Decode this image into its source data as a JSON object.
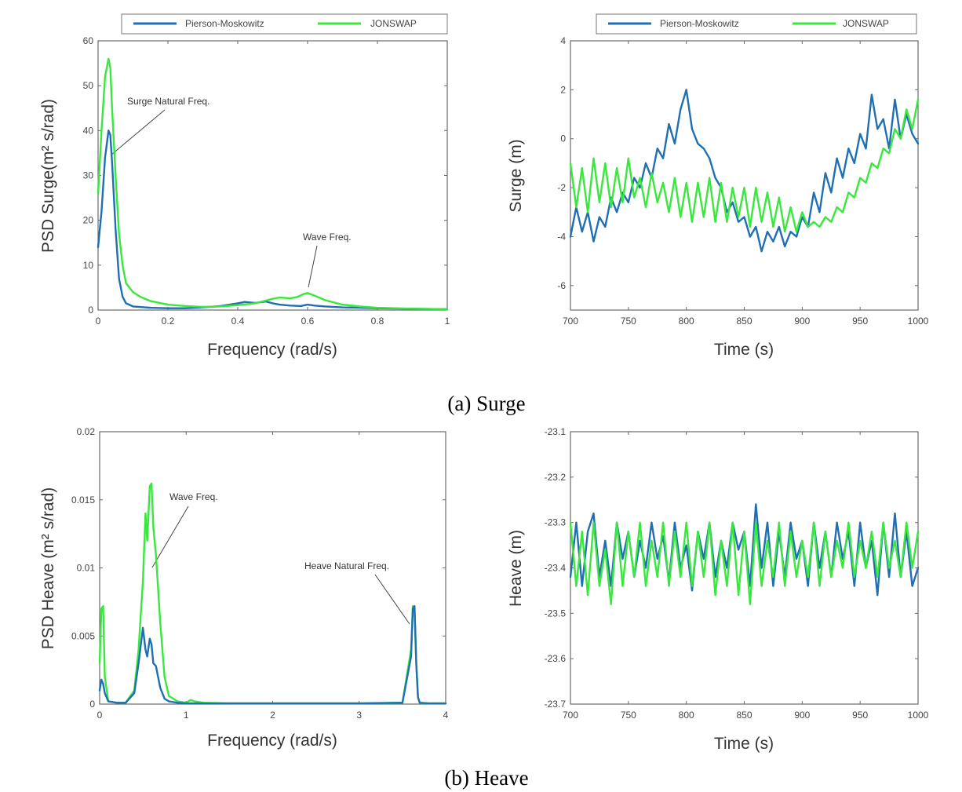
{
  "colors": {
    "pm": "#1f6fb4",
    "jonswap": "#39e83c"
  },
  "captions": {
    "surge": "(a) Surge",
    "heave": "(b) Heave"
  },
  "chart_data": [
    {
      "type": "line",
      "id": "psd_surge",
      "xlabel": "Frequency (rad/s)",
      "ylabel": "PSD Surge(m² s/rad)",
      "xlim": [
        0,
        1
      ],
      "ylim": [
        0,
        60
      ],
      "xticks": [
        "0",
        "0.2",
        "0.4",
        "0.6",
        "0.8",
        "1"
      ],
      "yticks": [
        "0",
        "10",
        "20",
        "30",
        "40",
        "50",
        "60"
      ],
      "legend": [
        "Pierson-Moskowitz",
        "JONSWAP"
      ],
      "legend_position": "top",
      "annotations": [
        {
          "text": "Surge Natural Freq.",
          "x": 0.035,
          "y": 35
        },
        {
          "text": "Wave Freq.",
          "x": 0.6,
          "y": 4.5
        }
      ],
      "series": [
        {
          "name": "Pierson-Moskowitz",
          "color": "#1f6fb4",
          "x": [
            0,
            0.01,
            0.02,
            0.03,
            0.035,
            0.04,
            0.05,
            0.06,
            0.07,
            0.08,
            0.1,
            0.15,
            0.2,
            0.25,
            0.3,
            0.35,
            0.4,
            0.42,
            0.45,
            0.48,
            0.5,
            0.52,
            0.55,
            0.58,
            0.6,
            0.62,
            0.65,
            0.7,
            0.75,
            0.8,
            0.9,
            1.0
          ],
          "y": [
            14,
            22,
            34,
            40,
            39,
            33,
            18,
            7,
            3,
            1.5,
            0.8,
            0.5,
            0.4,
            0.4,
            0.6,
            0.9,
            1.5,
            1.8,
            1.6,
            1.9,
            1.5,
            1.2,
            1.0,
            0.9,
            1.2,
            1.0,
            0.8,
            0.6,
            0.5,
            0.4,
            0.3,
            0.2
          ]
        },
        {
          "name": "JONSWAP",
          "color": "#39e83c",
          "x": [
            0,
            0.01,
            0.02,
            0.03,
            0.035,
            0.04,
            0.05,
            0.06,
            0.07,
            0.08,
            0.1,
            0.12,
            0.15,
            0.2,
            0.25,
            0.3,
            0.35,
            0.4,
            0.45,
            0.5,
            0.52,
            0.55,
            0.57,
            0.59,
            0.6,
            0.62,
            0.65,
            0.7,
            0.75,
            0.8,
            0.9,
            1.0
          ],
          "y": [
            26,
            40,
            52,
            56,
            54,
            45,
            30,
            17,
            10,
            6,
            4,
            3,
            2,
            1.2,
            0.9,
            0.7,
            0.8,
            1.1,
            1.5,
            2.5,
            2.8,
            2.6,
            2.9,
            3.6,
            3.8,
            3.2,
            2.2,
            1.2,
            0.8,
            0.5,
            0.3,
            0.2
          ]
        }
      ]
    },
    {
      "type": "line",
      "id": "surge_time",
      "xlabel": "Time (s)",
      "ylabel": "Surge (m)",
      "xlim": [
        700,
        1000
      ],
      "ylim": [
        -7,
        4
      ],
      "xticks": [
        "700",
        "750",
        "800",
        "850",
        "900",
        "950",
        "1000"
      ],
      "yticks": [
        "-6",
        "-4",
        "-2",
        "0",
        "2",
        "4"
      ],
      "legend": [
        "Pierson-Moskowitz",
        "JONSWAP"
      ],
      "legend_position": "top",
      "series": [
        {
          "name": "Pierson-Moskowitz",
          "color": "#1f6fb4",
          "x": [
            700,
            705,
            710,
            715,
            720,
            725,
            730,
            735,
            740,
            745,
            750,
            755,
            760,
            765,
            770,
            775,
            780,
            785,
            790,
            795,
            800,
            805,
            810,
            815,
            820,
            825,
            830,
            835,
            840,
            845,
            850,
            855,
            860,
            865,
            870,
            875,
            880,
            885,
            890,
            895,
            900,
            905,
            910,
            915,
            920,
            925,
            930,
            935,
            940,
            945,
            950,
            955,
            960,
            965,
            970,
            975,
            980,
            985,
            990,
            995,
            1000
          ],
          "y": [
            -4.0,
            -2.8,
            -3.8,
            -3.0,
            -4.2,
            -3.2,
            -3.6,
            -2.4,
            -3.0,
            -2.2,
            -2.6,
            -1.6,
            -2.0,
            -1.0,
            -1.6,
            -0.4,
            -0.8,
            0.6,
            -0.2,
            1.2,
            2.0,
            0.4,
            -0.2,
            -0.4,
            -0.8,
            -1.6,
            -2.0,
            -3.0,
            -2.6,
            -3.4,
            -3.2,
            -4.0,
            -3.6,
            -4.6,
            -3.8,
            -4.2,
            -3.6,
            -4.4,
            -3.8,
            -4.0,
            -3.2,
            -3.6,
            -2.2,
            -3.0,
            -1.4,
            -2.2,
            -0.8,
            -1.6,
            -0.4,
            -1.0,
            0.2,
            -0.4,
            1.8,
            0.4,
            0.8,
            -0.4,
            1.6,
            0.0,
            1.0,
            0.2,
            -0.2
          ]
        },
        {
          "name": "JONSWAP",
          "color": "#39e83c",
          "x": [
            700,
            705,
            710,
            715,
            720,
            725,
            730,
            735,
            740,
            745,
            750,
            755,
            760,
            765,
            770,
            775,
            780,
            785,
            790,
            795,
            800,
            805,
            810,
            815,
            820,
            825,
            830,
            835,
            840,
            845,
            850,
            855,
            860,
            865,
            870,
            875,
            880,
            885,
            890,
            895,
            900,
            905,
            910,
            915,
            920,
            925,
            930,
            935,
            940,
            945,
            950,
            955,
            960,
            965,
            970,
            975,
            980,
            985,
            990,
            995,
            1000
          ],
          "y": [
            -1.0,
            -2.8,
            -1.2,
            -3.0,
            -0.8,
            -2.6,
            -1.0,
            -2.8,
            -1.2,
            -2.6,
            -0.8,
            -2.4,
            -1.6,
            -2.8,
            -1.4,
            -2.6,
            -1.8,
            -3.0,
            -1.6,
            -3.2,
            -1.8,
            -3.4,
            -1.8,
            -3.2,
            -1.6,
            -3.4,
            -1.8,
            -3.4,
            -2.0,
            -3.2,
            -2.0,
            -3.6,
            -2.0,
            -3.4,
            -2.2,
            -3.6,
            -2.4,
            -3.8,
            -2.8,
            -3.8,
            -3.0,
            -3.6,
            -3.4,
            -3.6,
            -3.2,
            -3.4,
            -2.8,
            -3.0,
            -2.2,
            -2.4,
            -1.6,
            -1.8,
            -1.0,
            -1.2,
            -0.4,
            -0.6,
            0.4,
            0.0,
            1.2,
            0.4,
            1.6
          ]
        }
      ]
    },
    {
      "type": "line",
      "id": "psd_heave",
      "xlabel": "Frequency (rad/s)",
      "ylabel": "PSD Heave (m² s/rad)",
      "xlim": [
        0,
        4
      ],
      "ylim": [
        0,
        0.02
      ],
      "xticks": [
        "0",
        "1",
        "2",
        "3",
        "4"
      ],
      "yticks": [
        "0",
        "0.005",
        "0.01",
        "0.015",
        "0.02"
      ],
      "annotations": [
        {
          "text": "Wave Freq.",
          "x": 0.6,
          "y": 0.01
        },
        {
          "text": "Heave Natural Freq.",
          "x": 3.6,
          "y": 0.006
        }
      ],
      "series": [
        {
          "name": "JONSWAP",
          "color": "#39e83c",
          "x": [
            0,
            0.02,
            0.04,
            0.06,
            0.1,
            0.2,
            0.3,
            0.4,
            0.45,
            0.5,
            0.53,
            0.55,
            0.58,
            0.6,
            0.62,
            0.65,
            0.7,
            0.75,
            0.8,
            0.9,
            1.0,
            1.05,
            1.1,
            1.2,
            1.5,
            2.0,
            2.5,
            3.0,
            3.5,
            3.6,
            3.62,
            3.64,
            3.66,
            3.68,
            3.7,
            3.8,
            4.0
          ],
          "y": [
            0.003,
            0.007,
            0.0072,
            0.002,
            0.0002,
            0.0001,
            0.0001,
            0.001,
            0.004,
            0.009,
            0.014,
            0.012,
            0.016,
            0.0162,
            0.013,
            0.011,
            0.006,
            0.002,
            0.0006,
            0.0002,
            0.0001,
            0.0003,
            0.0002,
            0.0001,
            5e-05,
            5e-05,
            5e-05,
            5e-05,
            0.0001,
            0.004,
            0.0072,
            0.0068,
            0.003,
            0.0005,
            0.0001,
            5e-05,
            5e-05
          ]
        },
        {
          "name": "Pierson-Moskowitz",
          "color": "#1f6fb4",
          "x": [
            0,
            0.02,
            0.04,
            0.06,
            0.1,
            0.2,
            0.3,
            0.4,
            0.45,
            0.5,
            0.53,
            0.55,
            0.58,
            0.6,
            0.62,
            0.65,
            0.7,
            0.75,
            0.8,
            0.9,
            1.0,
            1.5,
            2.0,
            2.5,
            3.0,
            3.5,
            3.6,
            3.62,
            3.64,
            3.66,
            3.68,
            3.7,
            3.8,
            4.0
          ],
          "y": [
            0.001,
            0.0018,
            0.0015,
            0.0008,
            0.0002,
            0.0001,
            0.0001,
            0.0008,
            0.003,
            0.0056,
            0.004,
            0.0035,
            0.0048,
            0.0044,
            0.003,
            0.0028,
            0.0012,
            0.0004,
            0.0002,
            0.0001,
            5e-05,
            5e-05,
            5e-05,
            5e-05,
            5e-05,
            0.0001,
            0.0035,
            0.007,
            0.0072,
            0.003,
            0.0005,
            0.0001,
            5e-05,
            5e-05
          ]
        }
      ]
    },
    {
      "type": "line",
      "id": "heave_time",
      "xlabel": "Time (s)",
      "ylabel": "Heave (m)",
      "xlim": [
        700,
        1000
      ],
      "ylim": [
        -23.7,
        -23.1
      ],
      "xticks": [
        "700",
        "750",
        "800",
        "850",
        "900",
        "950",
        "1000"
      ],
      "yticks": [
        "-23.7",
        "-23.6",
        "-23.5",
        "-23.4",
        "-23.3",
        "-23.2",
        "-23.1"
      ],
      "series": [
        {
          "name": "Pierson-Moskowitz",
          "color": "#1f6fb4",
          "x": [
            700,
            705,
            710,
            715,
            720,
            725,
            730,
            735,
            740,
            745,
            750,
            755,
            760,
            765,
            770,
            775,
            780,
            785,
            790,
            795,
            800,
            805,
            810,
            815,
            820,
            825,
            830,
            835,
            840,
            845,
            850,
            855,
            860,
            865,
            870,
            875,
            880,
            885,
            890,
            895,
            900,
            905,
            910,
            915,
            920,
            925,
            930,
            935,
            940,
            945,
            950,
            955,
            960,
            965,
            970,
            975,
            980,
            985,
            990,
            995,
            1000
          ],
          "y": [
            -23.42,
            -23.3,
            -23.44,
            -23.32,
            -23.28,
            -23.42,
            -23.34,
            -23.44,
            -23.3,
            -23.38,
            -23.32,
            -23.42,
            -23.34,
            -23.4,
            -23.3,
            -23.38,
            -23.33,
            -23.43,
            -23.3,
            -23.4,
            -23.35,
            -23.45,
            -23.32,
            -23.38,
            -23.3,
            -23.42,
            -23.34,
            -23.4,
            -23.3,
            -23.36,
            -23.32,
            -23.44,
            -23.26,
            -23.4,
            -23.3,
            -23.44,
            -23.32,
            -23.42,
            -23.3,
            -23.38,
            -23.34,
            -23.44,
            -23.3,
            -23.4,
            -23.32,
            -23.42,
            -23.3,
            -23.38,
            -23.32,
            -23.44,
            -23.3,
            -23.4,
            -23.34,
            -23.46,
            -23.3,
            -23.42,
            -23.28,
            -23.42,
            -23.32,
            -23.44,
            -23.4
          ]
        },
        {
          "name": "JONSWAP",
          "color": "#39e83c",
          "x": [
            700,
            705,
            710,
            715,
            720,
            725,
            730,
            735,
            740,
            745,
            750,
            755,
            760,
            765,
            770,
            775,
            780,
            785,
            790,
            795,
            800,
            805,
            810,
            815,
            820,
            825,
            830,
            835,
            840,
            845,
            850,
            855,
            860,
            865,
            870,
            875,
            880,
            885,
            890,
            895,
            900,
            905,
            910,
            915,
            920,
            925,
            930,
            935,
            940,
            945,
            950,
            955,
            960,
            965,
            970,
            975,
            980,
            985,
            990,
            995,
            1000
          ],
          "y": [
            -23.3,
            -23.44,
            -23.32,
            -23.46,
            -23.3,
            -23.44,
            -23.36,
            -23.48,
            -23.3,
            -23.44,
            -23.32,
            -23.42,
            -23.3,
            -23.44,
            -23.34,
            -23.42,
            -23.3,
            -23.44,
            -23.32,
            -23.42,
            -23.3,
            -23.44,
            -23.32,
            -23.42,
            -23.3,
            -23.46,
            -23.34,
            -23.44,
            -23.3,
            -23.46,
            -23.32,
            -23.48,
            -23.3,
            -23.44,
            -23.34,
            -23.42,
            -23.3,
            -23.44,
            -23.32,
            -23.42,
            -23.34,
            -23.42,
            -23.3,
            -23.44,
            -23.32,
            -23.42,
            -23.34,
            -23.4,
            -23.3,
            -23.42,
            -23.34,
            -23.4,
            -23.32,
            -23.42,
            -23.3,
            -23.4,
            -23.34,
            -23.42,
            -23.3,
            -23.4,
            -23.32
          ]
        }
      ]
    }
  ]
}
